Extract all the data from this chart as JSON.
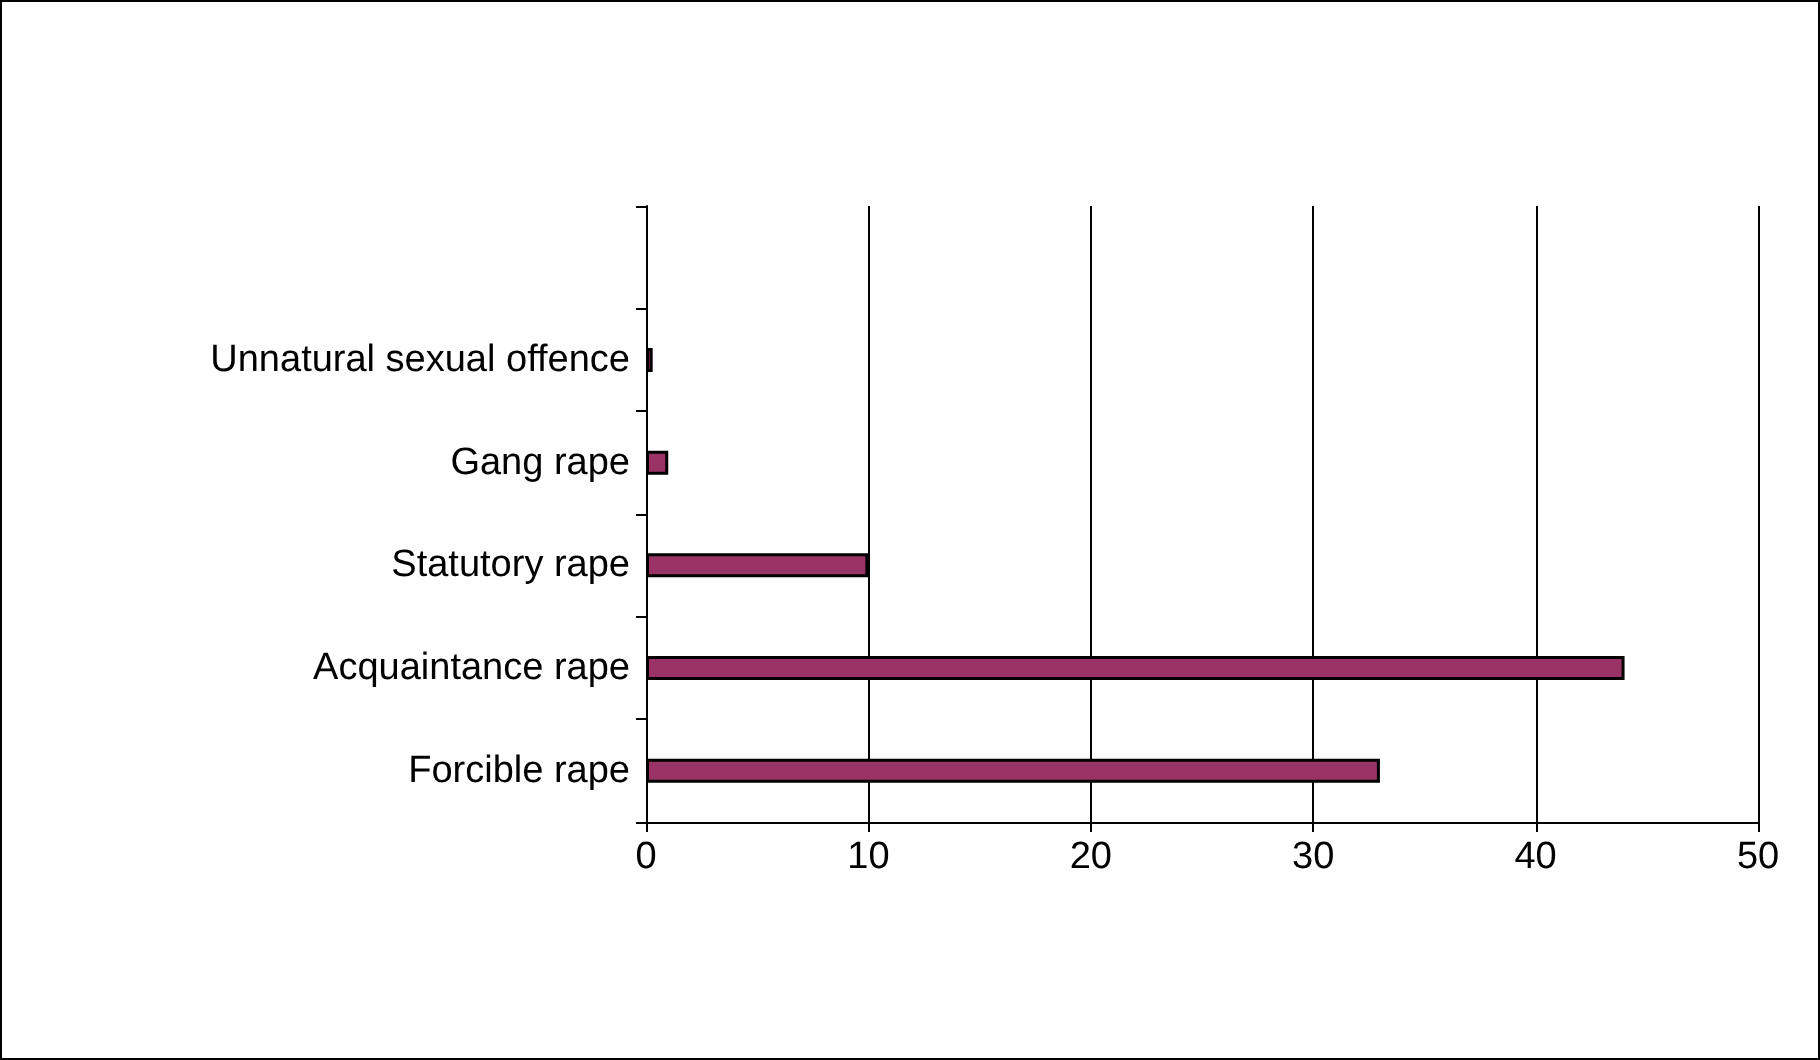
{
  "chart_data": {
    "type": "bar",
    "orientation": "horizontal",
    "categories": [
      null,
      "Unnatural sexual offence",
      "Gang rape",
      "Statutory rape",
      "Acquaintance rape",
      "Forcible rape"
    ],
    "values": [
      null,
      0.3,
      1,
      10,
      44,
      33
    ],
    "color": "#993366",
    "xlim": [
      0,
      50
    ],
    "xticks": [
      0,
      10,
      20,
      30,
      40,
      50
    ],
    "grid": "x"
  }
}
